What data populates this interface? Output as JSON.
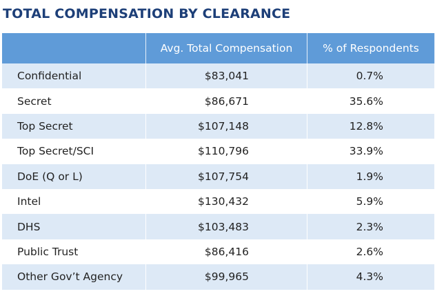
{
  "title": "TOTAL COMPENSATION BY CLEARANCE",
  "table": {
    "header": [
      "Avg. Total Compensation",
      "% of Respondents"
    ],
    "rows": [
      [
        "Confidential",
        "$83,041",
        "0.7%"
      ],
      [
        "Secret",
        "$86,671",
        "35.6%"
      ],
      [
        "Top Secret",
        "$107,148",
        "12.8%"
      ],
      [
        "Top Secret/SCI",
        "$110,796",
        "33.9%"
      ],
      [
        "DoE (Q or L)",
        "$107,754",
        "1.9%"
      ],
      [
        "Intel",
        "$130,432",
        "5.9%"
      ],
      [
        "DHS",
        "$103,483",
        "2.3%"
      ],
      [
        "Public Trust",
        "$86,416",
        "2.6%"
      ],
      [
        "Other Gov’t Agency",
        "$99,965",
        "4.3%"
      ]
    ]
  }
}
